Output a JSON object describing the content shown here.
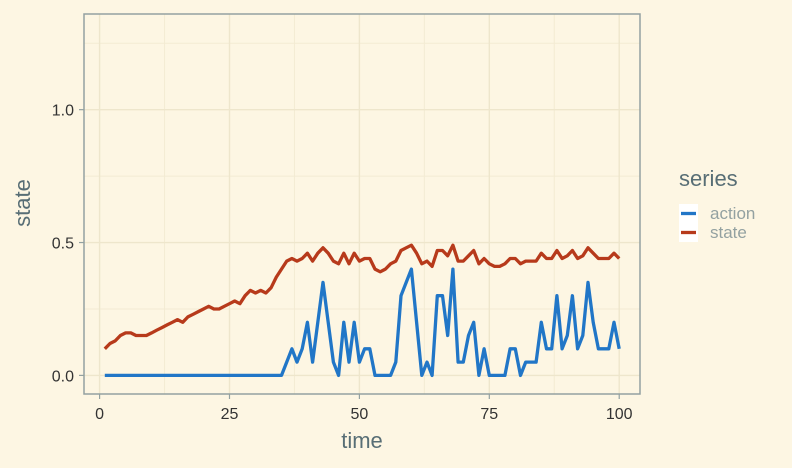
{
  "chart_data": {
    "type": "line",
    "title": "",
    "xlabel": "time",
    "ylabel": "state",
    "xlim": [
      -3,
      104
    ],
    "ylim": [
      -0.07,
      1.36
    ],
    "x_ticks": [
      0,
      25,
      50,
      75,
      100
    ],
    "y_ticks": [
      0.0,
      0.5,
      1.0
    ],
    "x_tick_labels": [
      "0",
      "25",
      "50",
      "75",
      "100"
    ],
    "y_tick_labels": [
      "0.0",
      "0.5",
      "1.0"
    ],
    "grid": true,
    "legend": {
      "title": "series",
      "position": "right"
    },
    "x": [
      1,
      2,
      3,
      4,
      5,
      6,
      7,
      8,
      9,
      10,
      11,
      12,
      13,
      14,
      15,
      16,
      17,
      18,
      19,
      20,
      21,
      22,
      23,
      24,
      25,
      26,
      27,
      28,
      29,
      30,
      31,
      32,
      33,
      34,
      35,
      36,
      37,
      38,
      39,
      40,
      41,
      42,
      43,
      44,
      45,
      46,
      47,
      48,
      49,
      50,
      51,
      52,
      53,
      54,
      55,
      56,
      57,
      58,
      59,
      60,
      61,
      62,
      63,
      64,
      65,
      66,
      67,
      68,
      69,
      70,
      71,
      72,
      73,
      74,
      75,
      76,
      77,
      78,
      79,
      80,
      81,
      82,
      83,
      84,
      85,
      86,
      87,
      88,
      89,
      90,
      91,
      92,
      93,
      94,
      95,
      96,
      97,
      98,
      99,
      100
    ],
    "series": [
      {
        "name": "action",
        "color": "#2176C7",
        "values": [
          0,
          0,
          0,
          0,
          0,
          0,
          0,
          0,
          0,
          0,
          0,
          0,
          0,
          0,
          0,
          0,
          0,
          0,
          0,
          0,
          0,
          0,
          0,
          0,
          0,
          0,
          0,
          0,
          0,
          0,
          0,
          0,
          0,
          0,
          0,
          0.05,
          0.1,
          0.05,
          0.1,
          0.2,
          0.05,
          0.2,
          0.35,
          0.2,
          0.05,
          0,
          0.2,
          0.05,
          0.2,
          0.05,
          0.1,
          0.1,
          0,
          0,
          0,
          0,
          0.05,
          0.3,
          0.35,
          0.4,
          0.2,
          0,
          0.05,
          0,
          0.3,
          0.3,
          0.15,
          0.4,
          0.05,
          0.05,
          0.15,
          0.2,
          0,
          0.1,
          0,
          0,
          0,
          0,
          0.1,
          0.1,
          0,
          0.05,
          0.05,
          0.05,
          0.2,
          0.1,
          0.1,
          0.3,
          0.1,
          0.15,
          0.3,
          0.1,
          0.15,
          0.35,
          0.2,
          0.1,
          0.1,
          0.1,
          0.2,
          0.1
        ]
      },
      {
        "name": "state",
        "color": "#B73A1B",
        "values": [
          0.1,
          0.12,
          0.13,
          0.15,
          0.16,
          0.16,
          0.15,
          0.15,
          0.15,
          0.16,
          0.17,
          0.18,
          0.19,
          0.2,
          0.21,
          0.2,
          0.22,
          0.23,
          0.24,
          0.25,
          0.26,
          0.25,
          0.25,
          0.26,
          0.27,
          0.28,
          0.27,
          0.3,
          0.32,
          0.31,
          0.32,
          0.31,
          0.33,
          0.37,
          0.4,
          0.43,
          0.44,
          0.43,
          0.44,
          0.46,
          0.43,
          0.46,
          0.48,
          0.46,
          0.43,
          0.42,
          0.46,
          0.42,
          0.46,
          0.43,
          0.44,
          0.44,
          0.4,
          0.39,
          0.4,
          0.42,
          0.43,
          0.47,
          0.48,
          0.49,
          0.46,
          0.42,
          0.43,
          0.41,
          0.47,
          0.47,
          0.45,
          0.49,
          0.43,
          0.43,
          0.45,
          0.47,
          0.42,
          0.44,
          0.42,
          0.41,
          0.41,
          0.42,
          0.44,
          0.44,
          0.42,
          0.43,
          0.43,
          0.43,
          0.46,
          0.44,
          0.44,
          0.47,
          0.44,
          0.45,
          0.47,
          0.44,
          0.45,
          0.48,
          0.46,
          0.44,
          0.44,
          0.44,
          0.46,
          0.44
        ]
      }
    ]
  }
}
